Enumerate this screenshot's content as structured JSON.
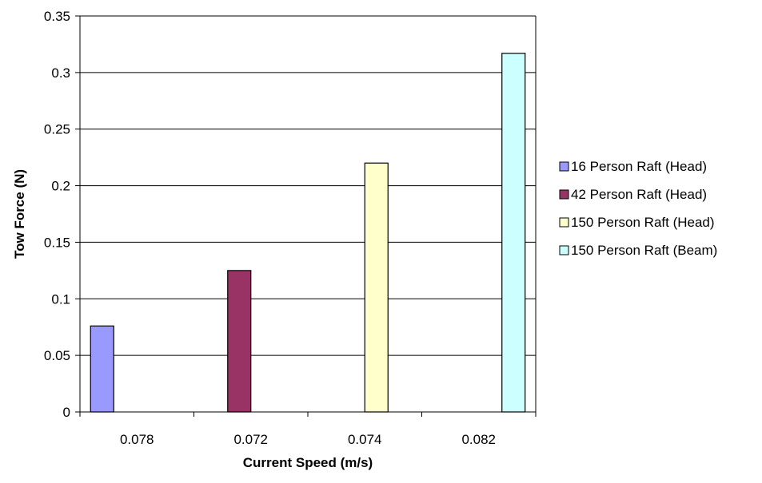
{
  "chart_data": {
    "type": "bar",
    "title": "",
    "xlabel": "Current Speed (m/s)",
    "ylabel": "Tow Force (N)",
    "categories": [
      "0.078",
      "0.072",
      "0.074",
      "0.082"
    ],
    "ylim": [
      0,
      0.35
    ],
    "yticks": [
      "0",
      "0.05",
      "0.1",
      "0.15",
      "0.2",
      "0.25",
      "0.3",
      "0.35"
    ],
    "grid": "horizontal",
    "legend_position": "right",
    "series": [
      {
        "name": "16 Person Raft (Head)",
        "color": "#9999ff",
        "values": [
          0.076,
          null,
          null,
          null
        ]
      },
      {
        "name": "42 Person Raft (Head)",
        "color": "#993366",
        "values": [
          null,
          0.125,
          null,
          null
        ]
      },
      {
        "name": "150 Person Raft (Head)",
        "color": "#ffffcc",
        "values": [
          null,
          null,
          0.22,
          null
        ]
      },
      {
        "name": "150 Person Raft (Beam)",
        "color": "#ccffff",
        "values": [
          null,
          null,
          null,
          0.317
        ]
      }
    ]
  }
}
